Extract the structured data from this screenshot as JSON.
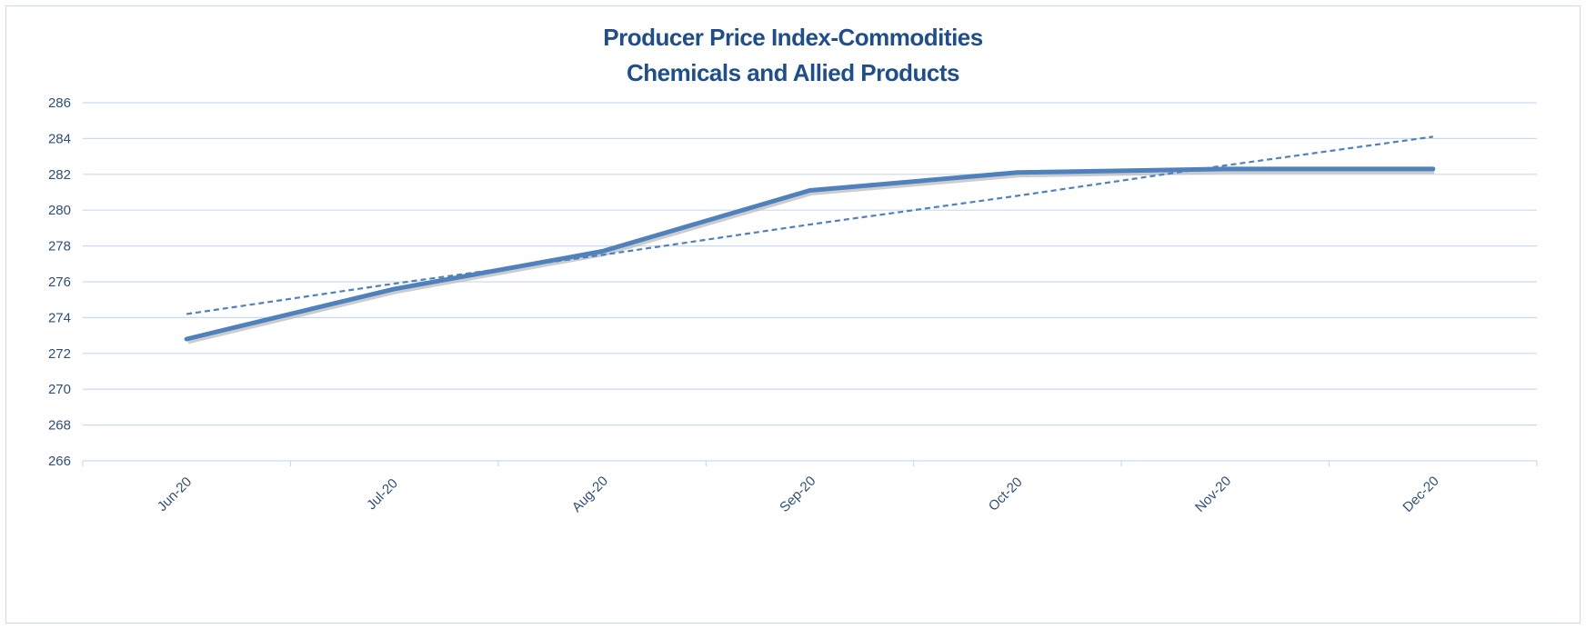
{
  "chart_data": {
    "type": "line",
    "title": "Producer Price Index-Commodities",
    "subtitle": "Chemicals and Allied Products",
    "xlabel": "",
    "ylabel": "",
    "categories": [
      "Jun-20",
      "Jul-20",
      "Aug-20",
      "Sep-20",
      "Oct-20",
      "Nov-20",
      "Dec-20"
    ],
    "series": [
      {
        "values": [
          272.8,
          275.6,
          277.7,
          281.1,
          282.1,
          282.3,
          282.3
        ],
        "color": "#4f81bd",
        "style": "solid"
      },
      {
        "values": [
          274.2,
          275.9,
          277.5,
          279.2,
          280.8,
          282.5,
          284.1
        ],
        "color": "#4f81bd",
        "style": "dashed"
      }
    ],
    "ylim": [
      266,
      286
    ],
    "yticks": [
      "266",
      "268",
      "270",
      "272",
      "274",
      "276",
      "278",
      "280",
      "282",
      "284",
      "286"
    ],
    "grid": true,
    "gridColor": "#c9daf0",
    "legend": "none"
  }
}
